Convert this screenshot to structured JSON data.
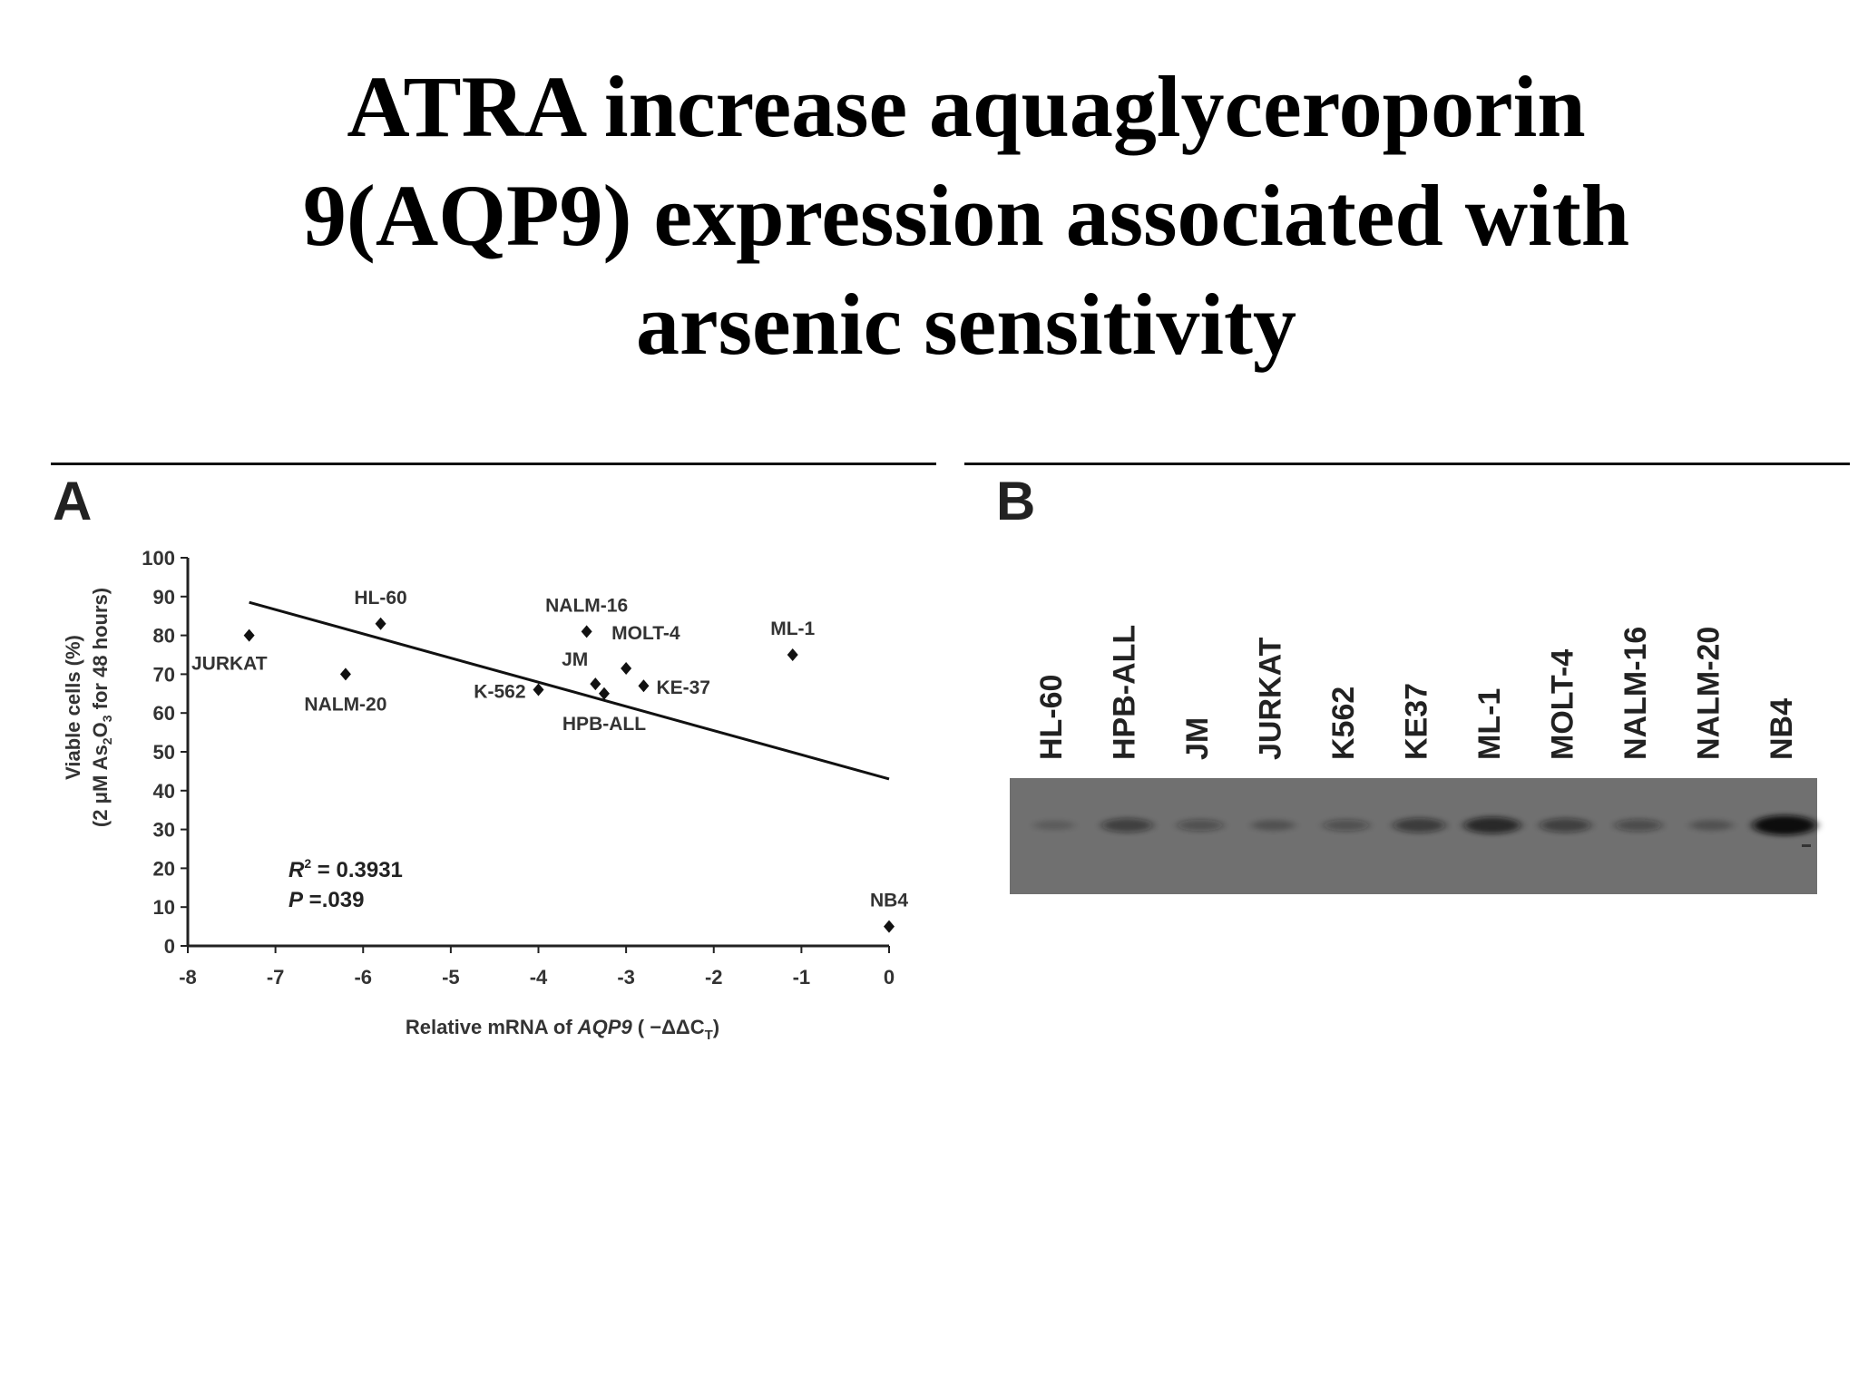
{
  "slide": {
    "title_lines": [
      "ATRA increase aquaglyceroporin",
      "9(AQP9) expression associated with",
      "arsenic sensitivity"
    ]
  },
  "panel_a": {
    "letter": "A"
  },
  "panel_b": {
    "letter": "B",
    "lanes": [
      "HL-60",
      "HPB-ALL",
      "JM",
      "JURKAT",
      "K562",
      "KE37",
      "ML-1",
      "MOLT-4",
      "NALM-16",
      "NALM-20",
      "NB4"
    ],
    "band_intensity": [
      0.05,
      0.45,
      0.25,
      0.15,
      0.25,
      0.5,
      0.7,
      0.45,
      0.3,
      0.15,
      1.0
    ]
  },
  "chart_data": {
    "type": "scatter",
    "xlabel_parts": [
      "Relative mRNA of ",
      "AQP9",
      " ( −ΔΔC",
      "T",
      ")"
    ],
    "ylabel_line1": "Viable cells (%)",
    "ylabel_line2_parts": [
      "(2 ",
      "μ",
      "M As",
      "2",
      "O",
      "3",
      " for 48 hours)"
    ],
    "xlim": [
      -8,
      0
    ],
    "ylim": [
      0,
      100
    ],
    "xticks": [
      -8,
      -7,
      -6,
      -5,
      -4,
      -3,
      -2,
      -1,
      0
    ],
    "yticks": [
      0,
      10,
      20,
      30,
      40,
      50,
      60,
      70,
      80,
      90,
      100
    ],
    "xtick_labels": [
      "-8",
      "-7",
      "-6",
      "-5",
      "-4",
      "-3",
      "-2",
      "-1",
      "0"
    ],
    "ytick_labels": [
      "0",
      "10",
      "20",
      "30",
      "40",
      "50",
      "60",
      "70",
      "80",
      "90",
      "100"
    ],
    "points": [
      {
        "label": "JURKAT",
        "x": -7.3,
        "y": 80,
        "label_pos": "below-left"
      },
      {
        "label": "HL-60",
        "x": -5.8,
        "y": 83,
        "label_pos": "above"
      },
      {
        "label": "NALM-20",
        "x": -6.2,
        "y": 70,
        "label_pos": "below"
      },
      {
        "label": "K-562",
        "x": -4.0,
        "y": 66,
        "label_pos": "left"
      },
      {
        "label": "NALM-16",
        "x": -3.45,
        "y": 81,
        "label_pos": "above"
      },
      {
        "label": "JM",
        "x": -3.35,
        "y": 67.5,
        "label_pos": "above-left"
      },
      {
        "label": "HPB-ALL",
        "x": -3.25,
        "y": 65,
        "label_pos": "below"
      },
      {
        "label": "MOLT-4",
        "x": -3.0,
        "y": 71.5,
        "label_pos": "above-right"
      },
      {
        "label": "KE-37",
        "x": -2.8,
        "y": 67,
        "label_pos": "right"
      },
      {
        "label": "ML-1",
        "x": -1.1,
        "y": 75,
        "label_pos": "above"
      },
      {
        "label": "NB4",
        "x": 0,
        "y": 5,
        "label_pos": "above"
      }
    ],
    "trendline": {
      "x": [
        -7.3,
        0
      ],
      "y": [
        88.5,
        43
      ]
    },
    "annotations": {
      "r2_var": "R",
      "r2_sup": "2",
      "r2_rest": " = 0.3931",
      "p_var": "P",
      "p_rest": " =.039"
    },
    "grid": false
  }
}
